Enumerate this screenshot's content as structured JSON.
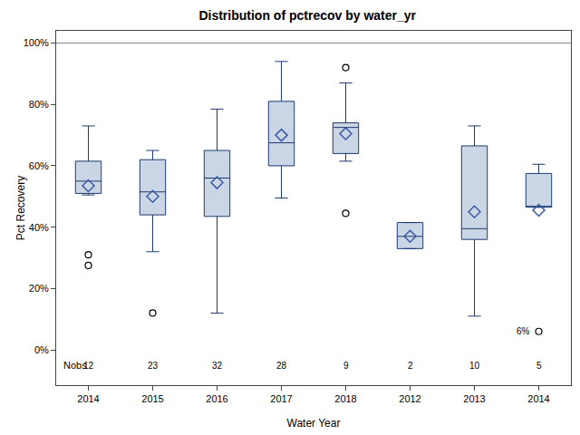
{
  "chart_data": {
    "type": "box",
    "title": "Distribution of pctrecov by water_yr",
    "x_label": "Water Year",
    "y_label": "Pct Recovery",
    "categories": [
      "2014",
      "2015",
      "2016",
      "2017",
      "2018",
      "2012",
      "2013",
      "2014"
    ],
    "q1": [
      51,
      44,
      43.5,
      60,
      64,
      33,
      36,
      46.5
    ],
    "median": [
      55,
      51.5,
      56,
      67.5,
      72.5,
      37,
      39.5,
      46.5
    ],
    "q3": [
      61.5,
      62,
      65,
      81,
      74,
      41.5,
      66.5,
      57.5
    ],
    "lower_whisker": [
      50.5,
      32,
      12,
      49.5,
      61.5,
      33,
      11,
      46.5
    ],
    "upper_whisker": [
      73,
      65,
      78.5,
      94,
      87,
      41.5,
      73,
      60.5
    ],
    "mean": [
      53.5,
      50,
      54.5,
      70,
      70.5,
      37,
      45,
      45.5
    ],
    "outliers": [
      [
        31,
        27.5
      ],
      [
        12
      ],
      [],
      [],
      [
        92,
        44.5
      ],
      [],
      [],
      [
        6
      ]
    ],
    "nobs_label": "Nobs",
    "nobs": [
      12,
      23,
      32,
      28,
      9,
      2,
      10,
      5
    ],
    "annotations": [
      {
        "category_index": 7,
        "y": 6,
        "text": "6%"
      }
    ],
    "reference_line": 100,
    "color": "#cad5e5",
    "ylim": [
      -11.5,
      104
    ],
    "yticks": [
      {
        "value": 0,
        "label": "0%"
      },
      {
        "value": 20,
        "label": "20%"
      },
      {
        "value": 40,
        "label": "40%"
      },
      {
        "value": 60,
        "label": "60%"
      },
      {
        "value": 80,
        "label": "80%"
      },
      {
        "value": 100,
        "label": "100%"
      }
    ],
    "grid": false
  }
}
